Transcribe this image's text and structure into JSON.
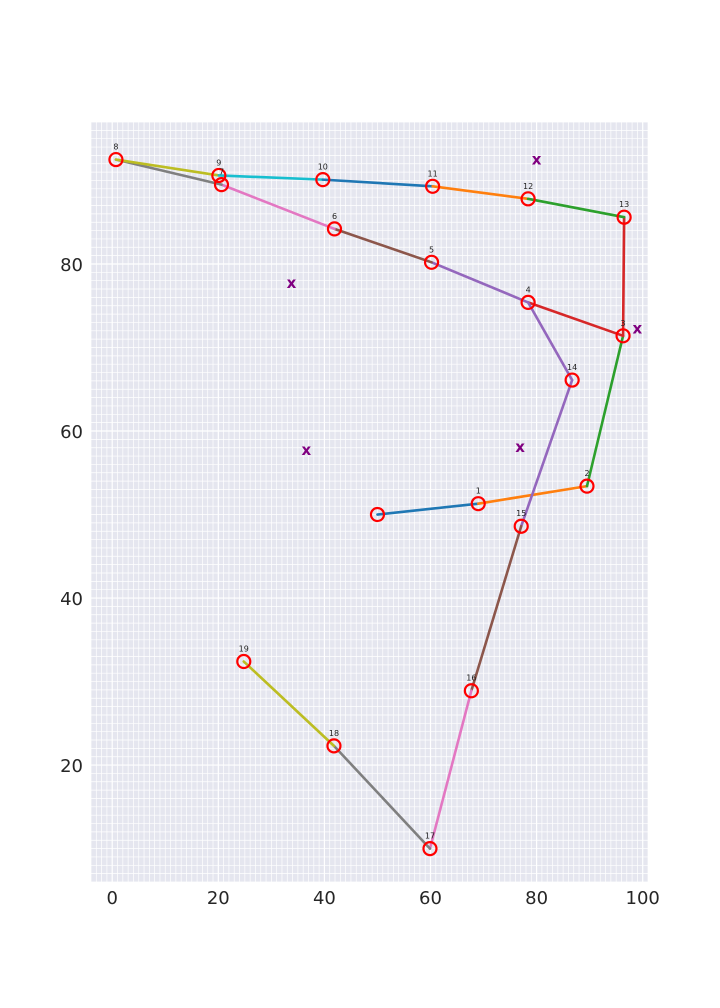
{
  "chart_data": {
    "type": "scatter",
    "title": "",
    "xlabel": "",
    "ylabel": "",
    "xlim": [
      -4,
      101
    ],
    "ylim": [
      6,
      97
    ],
    "xticks": [
      0,
      20,
      40,
      60,
      80,
      100
    ],
    "yticks": [
      20,
      40,
      60,
      80
    ],
    "grid": true,
    "colors": {
      "background": "#e5e6ef",
      "grid": "#ffffff",
      "marker": "#ff0000",
      "x_marker": "#800080"
    },
    "points": [
      {
        "label": "",
        "x": 50.0,
        "y": 50.0
      },
      {
        "label": "1",
        "x": 69.0,
        "y": 51.3
      },
      {
        "label": "2",
        "x": 89.5,
        "y": 53.4
      },
      {
        "label": "3",
        "x": 96.3,
        "y": 71.4
      },
      {
        "label": "4",
        "x": 78.4,
        "y": 75.4
      },
      {
        "label": "5",
        "x": 60.2,
        "y": 80.2
      },
      {
        "label": "6",
        "x": 41.9,
        "y": 84.2
      },
      {
        "label": "7",
        "x": 20.6,
        "y": 89.5
      },
      {
        "label": "8",
        "x": 0.7,
        "y": 92.5
      },
      {
        "label": "9",
        "x": 20.1,
        "y": 90.6
      },
      {
        "label": "10",
        "x": 39.7,
        "y": 90.1
      },
      {
        "label": "11",
        "x": 60.4,
        "y": 89.3
      },
      {
        "label": "12",
        "x": 78.4,
        "y": 87.8
      },
      {
        "label": "13",
        "x": 96.5,
        "y": 85.6
      },
      {
        "label": "14",
        "x": 86.7,
        "y": 66.1
      },
      {
        "label": "15",
        "x": 77.1,
        "y": 48.6
      },
      {
        "label": "16",
        "x": 67.7,
        "y": 28.9
      },
      {
        "label": "17",
        "x": 59.9,
        "y": 10.0
      },
      {
        "label": "18",
        "x": 41.8,
        "y": 22.3
      },
      {
        "label": "19",
        "x": 24.8,
        "y": 32.4
      }
    ],
    "segments": [
      {
        "from": 0,
        "to": 1,
        "color": "#1f77b4"
      },
      {
        "from": 1,
        "to": 2,
        "color": "#ff7f0e"
      },
      {
        "from": 2,
        "to": 3,
        "color": "#2ca02c"
      },
      {
        "from": 3,
        "to": 13,
        "color": "#d62728"
      },
      {
        "from": 3,
        "to": 4,
        "color": "#d62728"
      },
      {
        "from": 4,
        "to": 5,
        "color": "#9467bd"
      },
      {
        "from": 5,
        "to": 6,
        "color": "#8c564b"
      },
      {
        "from": 6,
        "to": 7,
        "color": "#e377c2"
      },
      {
        "from": 7,
        "to": 8,
        "color": "#7f7f7f"
      },
      {
        "from": 8,
        "to": 9,
        "color": "#bcbd22"
      },
      {
        "from": 9,
        "to": 10,
        "color": "#17becf"
      },
      {
        "from": 10,
        "to": 11,
        "color": "#1f77b4"
      },
      {
        "from": 11,
        "to": 12,
        "color": "#ff7f0e"
      },
      {
        "from": 12,
        "to": 13,
        "color": "#2ca02c"
      },
      {
        "from": 14,
        "to": 4,
        "color": "#9467bd"
      },
      {
        "from": 15,
        "to": 14,
        "color": "#9467bd"
      },
      {
        "from": 16,
        "to": 15,
        "color": "#8c564b"
      },
      {
        "from": 17,
        "to": 16,
        "color": "#e377c2"
      },
      {
        "from": 18,
        "to": 17,
        "color": "#7f7f7f"
      },
      {
        "from": 19,
        "to": 18,
        "color": "#bcbd22"
      }
    ],
    "x_markers": [
      {
        "label": "x",
        "x": 80.0,
        "y": 92.5
      },
      {
        "label": "x",
        "x": 33.8,
        "y": 77.7
      },
      {
        "label": "x",
        "x": 99.0,
        "y": 72.3
      },
      {
        "label": "x",
        "x": 36.6,
        "y": 57.7
      },
      {
        "label": "x",
        "x": 76.9,
        "y": 58.1
      }
    ]
  }
}
